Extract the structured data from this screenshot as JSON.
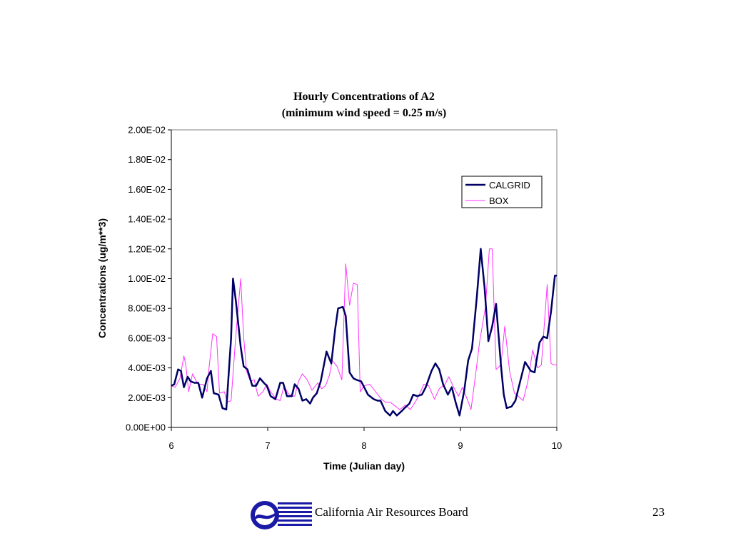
{
  "footer": {
    "org": "California Air Resources Board",
    "page_number": "23"
  },
  "chart_data": {
    "type": "line",
    "title": "Hourly Concentrations of A2",
    "subtitle": "(minimum wind speed = 0.25 m/s)",
    "xlabel": "Time (Julian day)",
    "ylabel": "Concentrations (ug/m**3)",
    "xlim": [
      6,
      10
    ],
    "ylim": [
      0,
      0.02
    ],
    "x_ticks": [
      "6",
      "7",
      "8",
      "9",
      "10"
    ],
    "y_ticks": [
      "0.00E+00",
      "2.00E-03",
      "4.00E-03",
      "6.00E-03",
      "8.00E-03",
      "1.00E-02",
      "1.20E-02",
      "1.40E-02",
      "1.60E-02",
      "1.80E-02",
      "2.00E-02"
    ],
    "grid": false,
    "legend_position": "top-right",
    "series": [
      {
        "name": "CALGRID",
        "color": "#000066",
        "x": [
          6.0,
          6.03,
          6.07,
          6.1,
          6.13,
          6.17,
          6.2,
          6.24,
          6.28,
          6.32,
          6.37,
          6.41,
          6.44,
          6.49,
          6.53,
          6.57,
          6.62,
          6.64,
          6.67,
          6.72,
          6.75,
          6.79,
          6.84,
          6.88,
          6.92,
          6.96,
          6.99,
          7.03,
          7.08,
          7.13,
          7.16,
          7.2,
          7.25,
          7.28,
          7.32,
          7.36,
          7.4,
          7.44,
          7.47,
          7.51,
          7.55,
          7.61,
          7.66,
          7.7,
          7.73,
          7.78,
          7.81,
          7.85,
          7.89,
          7.92,
          7.97,
          8.04,
          8.1,
          8.14,
          8.17,
          8.22,
          8.27,
          8.3,
          8.34,
          8.39,
          8.42,
          8.47,
          8.51,
          8.55,
          8.6,
          8.64,
          8.7,
          8.74,
          8.78,
          8.82,
          8.87,
          8.91,
          8.95,
          8.99,
          9.04,
          9.08,
          9.12,
          9.17,
          9.21,
          9.25,
          9.29,
          9.33,
          9.37,
          9.42,
          9.45,
          9.48,
          9.53,
          9.57,
          9.62,
          9.67,
          9.73,
          9.77,
          9.82,
          9.86,
          9.9,
          9.94,
          9.98,
          10.0
        ],
        "values": [
          0.0028,
          0.0029,
          0.0039,
          0.0038,
          0.0027,
          0.0034,
          0.0031,
          0.003,
          0.003,
          0.002,
          0.0033,
          0.0038,
          0.0023,
          0.0022,
          0.0013,
          0.0012,
          0.006,
          0.01,
          0.0085,
          0.0054,
          0.0041,
          0.0039,
          0.0028,
          0.0028,
          0.0033,
          0.003,
          0.0028,
          0.0021,
          0.0019,
          0.003,
          0.003,
          0.0021,
          0.0021,
          0.0029,
          0.0026,
          0.0018,
          0.0019,
          0.0016,
          0.002,
          0.0023,
          0.0031,
          0.0051,
          0.0043,
          0.0066,
          0.008,
          0.0081,
          0.0075,
          0.0037,
          0.0033,
          0.0032,
          0.0031,
          0.0022,
          0.0019,
          0.0018,
          0.0018,
          0.0011,
          0.0008,
          0.0011,
          0.0008,
          0.0011,
          0.0013,
          0.0016,
          0.0022,
          0.0021,
          0.0022,
          0.0027,
          0.0038,
          0.0043,
          0.0039,
          0.0029,
          0.0022,
          0.0027,
          0.0017,
          0.0008,
          0.0025,
          0.0045,
          0.0053,
          0.0088,
          0.012,
          0.0094,
          0.0058,
          0.0068,
          0.0083,
          0.0042,
          0.0022,
          0.0013,
          0.0014,
          0.0018,
          0.0031,
          0.0044,
          0.0038,
          0.0037,
          0.0057,
          0.0061,
          0.006,
          0.0078,
          0.0102,
          0.0102
        ]
      },
      {
        "name": "BOX",
        "color": "#ff33ff",
        "x": [
          6.0,
          6.04,
          6.09,
          6.13,
          6.15,
          6.18,
          6.22,
          6.26,
          6.29,
          6.33,
          6.37,
          6.39,
          6.43,
          6.47,
          6.5,
          6.55,
          6.58,
          6.62,
          6.67,
          6.72,
          6.75,
          6.78,
          6.82,
          6.86,
          6.9,
          6.95,
          6.99,
          7.03,
          7.09,
          7.13,
          7.17,
          7.21,
          7.25,
          7.28,
          7.32,
          7.36,
          7.41,
          7.46,
          7.52,
          7.56,
          7.6,
          7.64,
          7.67,
          7.72,
          7.77,
          7.81,
          7.85,
          7.89,
          7.93,
          7.96,
          8.0,
          8.06,
          8.12,
          8.18,
          8.22,
          8.27,
          8.31,
          8.37,
          8.43,
          8.48,
          8.54,
          8.58,
          8.62,
          8.67,
          8.73,
          8.78,
          8.84,
          8.88,
          8.93,
          8.98,
          9.02,
          9.07,
          9.11,
          9.16,
          9.2,
          9.26,
          9.3,
          9.33,
          9.37,
          9.42,
          9.46,
          9.51,
          9.56,
          9.6,
          9.65,
          9.7,
          9.75,
          9.8,
          9.84,
          9.9,
          9.94,
          9.97,
          10.0
        ],
        "values": [
          0.0028,
          0.0027,
          0.0033,
          0.0048,
          0.0042,
          0.0024,
          0.0036,
          0.0031,
          0.0029,
          0.0029,
          0.0024,
          0.0039,
          0.0063,
          0.0061,
          0.0023,
          0.0024,
          0.0017,
          0.0018,
          0.0062,
          0.01,
          0.0061,
          0.0038,
          0.0031,
          0.0032,
          0.0021,
          0.0024,
          0.0029,
          0.0024,
          0.0019,
          0.0018,
          0.0028,
          0.0023,
          0.0021,
          0.0021,
          0.0031,
          0.0036,
          0.0032,
          0.0025,
          0.003,
          0.0026,
          0.0028,
          0.0035,
          0.0045,
          0.0041,
          0.0032,
          0.011,
          0.0082,
          0.0097,
          0.0096,
          0.0024,
          0.0028,
          0.0029,
          0.0024,
          0.0019,
          0.0017,
          0.0017,
          0.0015,
          0.0012,
          0.0015,
          0.0012,
          0.0018,
          0.0023,
          0.0029,
          0.0028,
          0.0019,
          0.0026,
          0.0029,
          0.0034,
          0.0027,
          0.0021,
          0.0027,
          0.0019,
          0.0012,
          0.0037,
          0.0058,
          0.0081,
          0.012,
          0.012,
          0.0039,
          0.0042,
          0.0068,
          0.0038,
          0.0023,
          0.0021,
          0.0018,
          0.0031,
          0.0052,
          0.004,
          0.0042,
          0.0096,
          0.0043,
          0.0042,
          0.0042
        ]
      }
    ]
  }
}
